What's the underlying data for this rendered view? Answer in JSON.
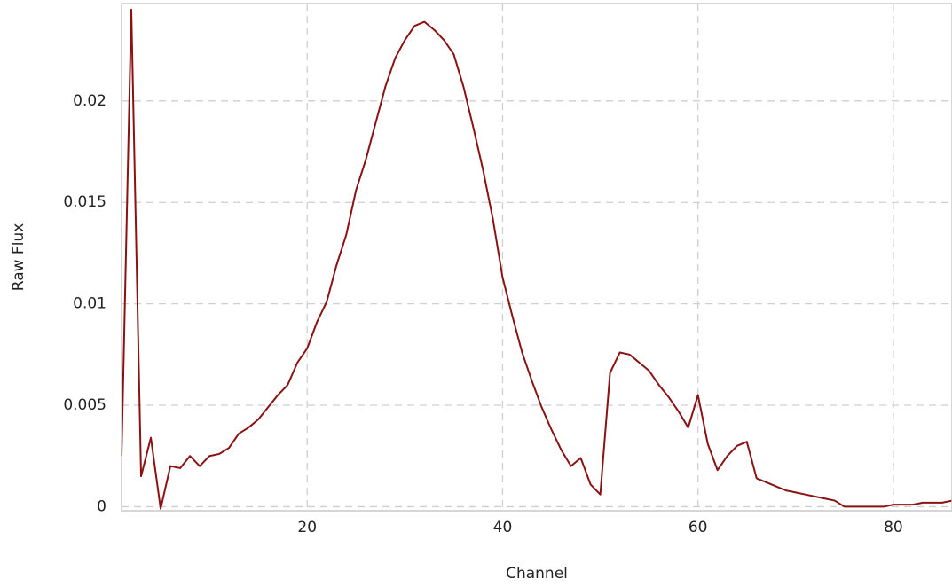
{
  "chart_data": {
    "type": "line",
    "xlabel": "Channel",
    "ylabel": "Raw Flux",
    "xlim": [
      1,
      86
    ],
    "ylim": [
      -0.0002,
      0.0248
    ],
    "xticks": [
      20,
      40,
      60,
      80
    ],
    "yticks": [
      0,
      0.005,
      0.01,
      0.015,
      0.02
    ],
    "ytick_labels": [
      "0",
      "0.005",
      "0.01",
      "0.015",
      "0.02"
    ],
    "grid": true,
    "line_color": "#8b1212",
    "series": [
      {
        "x": [
          1,
          2,
          3,
          4,
          5,
          6,
          7,
          8,
          9,
          10,
          11,
          12,
          13,
          14,
          15,
          16,
          17,
          18,
          19,
          20,
          21,
          22,
          23,
          24,
          25,
          26,
          27,
          28,
          29,
          30,
          31,
          32,
          33,
          34,
          35,
          36,
          37,
          38,
          39,
          40,
          41,
          42,
          43,
          44,
          45,
          46,
          47,
          48,
          49,
          50,
          51,
          52,
          53,
          54,
          55,
          56,
          57,
          58,
          59,
          60,
          61,
          62,
          63,
          64,
          65,
          66,
          67,
          68,
          69,
          70,
          71,
          72,
          73,
          74,
          75,
          76,
          77,
          78,
          79,
          80,
          81,
          82,
          83,
          84,
          85,
          86
        ],
        "values": [
          0.0025,
          0.0245,
          0.0015,
          0.0034,
          -0.0001,
          0.002,
          0.0019,
          0.0025,
          0.002,
          0.0025,
          0.0026,
          0.0029,
          0.0036,
          0.0039,
          0.0043,
          0.0049,
          0.0055,
          0.006,
          0.0071,
          0.0078,
          0.0091,
          0.0101,
          0.0119,
          0.0134,
          0.0156,
          0.0171,
          0.0189,
          0.0207,
          0.0221,
          0.023,
          0.0237,
          0.0239,
          0.0235,
          0.023,
          0.0223,
          0.0207,
          0.0187,
          0.0166,
          0.0142,
          0.0113,
          0.0094,
          0.0076,
          0.0062,
          0.0049,
          0.0038,
          0.0028,
          0.002,
          0.0024,
          0.0011,
          0.0006,
          0.0066,
          0.0076,
          0.0075,
          0.0071,
          0.0067,
          0.006,
          0.0054,
          0.0047,
          0.0039,
          0.0055,
          0.0031,
          0.0018,
          0.0025,
          0.003,
          0.0032,
          0.0014,
          0.0012,
          0.001,
          0.0008,
          0.0007,
          0.0006,
          0.0005,
          0.0004,
          0.0003,
          0.0,
          0.0,
          0.0,
          0.0,
          0.0,
          0.0001,
          0.0001,
          0.0001,
          0.0002,
          0.0002,
          0.0002,
          0.0003
        ]
      }
    ]
  }
}
